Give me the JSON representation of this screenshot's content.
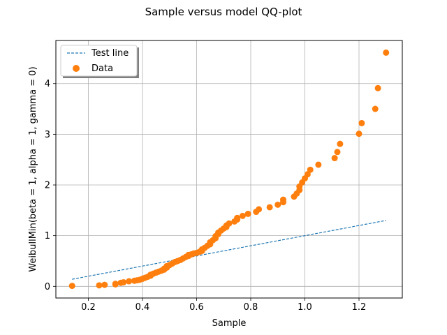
{
  "chart_data": {
    "type": "scatter",
    "title": "Sample versus model QQ-plot",
    "xlabel": "Sample",
    "ylabel": "WeibullMin(beta = 1, alpha = 1, gamma = 0)",
    "xlim": [
      0.08,
      1.36
    ],
    "ylim": [
      -0.23,
      4.85
    ],
    "xticks": [
      0.2,
      0.4,
      0.6,
      0.8,
      1.0,
      1.2
    ],
    "xtick_labels": [
      "0.2",
      "0.4",
      "0.6",
      "0.8",
      "1.0",
      "1.2"
    ],
    "yticks": [
      0,
      1,
      2,
      3,
      4
    ],
    "ytick_labels": [
      "0",
      "1",
      "2",
      "3",
      "4"
    ],
    "grid": true,
    "legend_position": "top-left",
    "series": [
      {
        "name": "Test line",
        "kind": "line",
        "style": "dashed",
        "color": "#1f77b4",
        "x": [
          0.14,
          1.3
        ],
        "y": [
          0.14,
          1.3
        ]
      },
      {
        "name": "Data",
        "kind": "scatter",
        "color": "#ff7f0e",
        "x": [
          0.14,
          0.24,
          0.26,
          0.3,
          0.3,
          0.32,
          0.33,
          0.35,
          0.37,
          0.38,
          0.39,
          0.4,
          0.41,
          0.42,
          0.43,
          0.43,
          0.44,
          0.45,
          0.46,
          0.47,
          0.48,
          0.48,
          0.49,
          0.49,
          0.5,
          0.51,
          0.52,
          0.53,
          0.54,
          0.55,
          0.56,
          0.57,
          0.57,
          0.58,
          0.59,
          0.6,
          0.61,
          0.62,
          0.62,
          0.63,
          0.64,
          0.65,
          0.65,
          0.66,
          0.67,
          0.67,
          0.68,
          0.68,
          0.69,
          0.7,
          0.71,
          0.71,
          0.72,
          0.74,
          0.75,
          0.75,
          0.77,
          0.79,
          0.82,
          0.83,
          0.87,
          0.9,
          0.92,
          0.92,
          0.96,
          0.97,
          0.98,
          0.98,
          0.99,
          1.0,
          1.01,
          1.02,
          1.05,
          1.11,
          1.12,
          1.13,
          1.2,
          1.21,
          1.26,
          1.27,
          1.3
        ],
        "y": [
          0.01,
          0.02,
          0.03,
          0.04,
          0.05,
          0.07,
          0.08,
          0.1,
          0.11,
          0.12,
          0.13,
          0.15,
          0.17,
          0.19,
          0.21,
          0.23,
          0.25,
          0.27,
          0.29,
          0.31,
          0.33,
          0.35,
          0.37,
          0.4,
          0.42,
          0.45,
          0.48,
          0.5,
          0.52,
          0.55,
          0.58,
          0.6,
          0.62,
          0.63,
          0.65,
          0.66,
          0.68,
          0.7,
          0.73,
          0.76,
          0.8,
          0.83,
          0.87,
          0.91,
          0.95,
          0.99,
          1.03,
          1.06,
          1.1,
          1.14,
          1.17,
          1.2,
          1.24,
          1.28,
          1.32,
          1.35,
          1.39,
          1.43,
          1.47,
          1.52,
          1.56,
          1.61,
          1.66,
          1.71,
          1.77,
          1.83,
          1.9,
          1.97,
          2.05,
          2.13,
          2.21,
          2.3,
          2.4,
          2.53,
          2.65,
          2.81,
          3.01,
          3.22,
          3.5,
          3.91,
          4.61
        ]
      }
    ]
  }
}
